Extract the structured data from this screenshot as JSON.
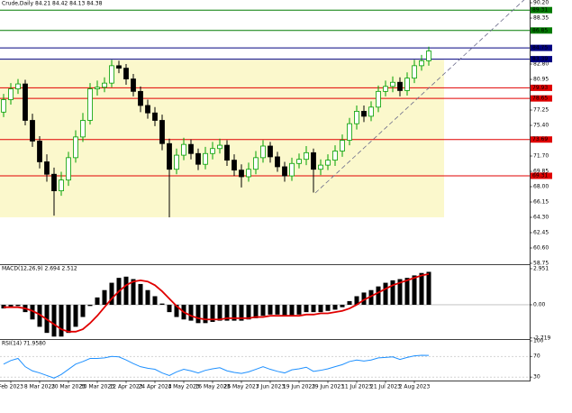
{
  "chart_data": [
    {
      "type": "candlestick",
      "title": "Crude,Daily 84.21 84.42 84.13 84.38",
      "categories": [
        null,
        "Feb 2023",
        null,
        null,
        null,
        "8 Mar 2023",
        null,
        null,
        null,
        "20 Mar 2023",
        null,
        null,
        null,
        "30 Mar 2023",
        null,
        null,
        null,
        "12 Apr 2023",
        null,
        null,
        null,
        "24 Apr 2023",
        null,
        null,
        null,
        "4 May 2023",
        null,
        null,
        null,
        "16 May 2023",
        null,
        null,
        null,
        "26 May 2023",
        null,
        null,
        null,
        "7 Jun 2023",
        null,
        null,
        null,
        "19 Jun 2023",
        null,
        null,
        null,
        "29 Jun 2023",
        null,
        null,
        null,
        "11 Jul 2023",
        null,
        null,
        null,
        "21 Jul 2023",
        null,
        null,
        null,
        "2 Aug 2023",
        null,
        null
      ],
      "open": [
        77.0,
        78.5,
        79.8,
        80.4,
        76.0,
        73.5,
        71.0,
        69.5,
        67.5,
        68.8,
        71.5,
        74.0,
        76.0,
        79.8,
        80.0,
        80.5,
        82.6,
        82.3,
        81.0,
        79.5,
        77.8,
        76.9,
        76.0,
        73.2,
        70.1,
        71.8,
        73.1,
        72.0,
        70.7,
        72.0,
        72.6,
        73.0,
        71.2,
        70.0,
        69.2,
        70.1,
        71.5,
        72.9,
        71.6,
        70.4,
        69.3,
        70.8,
        71.3,
        72.1,
        70.1,
        70.6,
        71.2,
        72.3,
        73.6,
        75.6,
        77.1,
        76.5,
        77.6,
        79.5,
        80.1,
        80.6,
        79.6,
        81.1,
        82.6,
        83.2
      ],
      "high": [
        79.2,
        80.5,
        81.0,
        80.9,
        76.8,
        74.1,
        71.9,
        70.3,
        69.8,
        72.2,
        74.8,
        76.9,
        80.5,
        80.8,
        81.2,
        83.3,
        83.2,
        82.8,
        81.6,
        80.1,
        78.5,
        77.6,
        76.7,
        73.8,
        72.6,
        73.9,
        73.7,
        72.6,
        72.8,
        73.4,
        73.8,
        73.6,
        71.9,
        70.7,
        70.9,
        72.3,
        73.6,
        73.4,
        72.2,
        71.0,
        71.5,
        72.0,
        72.9,
        72.6,
        71.3,
        71.9,
        73.0,
        74.3,
        76.3,
        77.8,
        77.8,
        78.3,
        80.2,
        80.8,
        81.3,
        81.2,
        81.8,
        83.3,
        83.9,
        84.9
      ],
      "low": [
        76.4,
        77.9,
        79.2,
        75.4,
        72.8,
        70.2,
        68.6,
        64.5,
        66.9,
        68.1,
        70.9,
        73.4,
        75.5,
        79.0,
        79.4,
        80.0,
        81.7,
        80.3,
        78.9,
        77.0,
        76.2,
        75.3,
        72.4,
        64.3,
        69.5,
        71.2,
        71.3,
        70.0,
        70.1,
        71.3,
        72.0,
        70.5,
        69.3,
        67.9,
        68.6,
        69.5,
        70.9,
        70.9,
        69.8,
        68.6,
        68.7,
        70.2,
        70.6,
        67.3,
        69.4,
        70.0,
        70.5,
        71.6,
        73.0,
        74.9,
        75.8,
        75.9,
        77.0,
        78.9,
        79.4,
        78.9,
        79.0,
        80.5,
        82.0,
        82.6
      ],
      "close": [
        78.5,
        79.8,
        80.4,
        76.0,
        73.5,
        71.0,
        69.5,
        67.5,
        68.8,
        71.5,
        74.0,
        76.0,
        79.8,
        80.0,
        80.5,
        82.6,
        82.3,
        81.0,
        79.5,
        77.8,
        76.9,
        76.0,
        73.2,
        70.1,
        71.8,
        73.1,
        72.0,
        70.7,
        72.0,
        72.6,
        73.0,
        71.2,
        70.0,
        69.2,
        70.1,
        71.5,
        72.9,
        71.6,
        70.4,
        69.3,
        70.8,
        71.3,
        72.1,
        70.1,
        70.6,
        71.2,
        72.3,
        73.6,
        75.6,
        77.1,
        76.5,
        77.6,
        79.5,
        80.1,
        80.6,
        79.6,
        81.1,
        82.6,
        83.2,
        84.38
      ],
      "colors": {
        "up": "#00a000",
        "down": "#000000"
      },
      "zone": {
        "values": [
          83.3,
          64.3
        ],
        "color": "#fbf8cc"
      },
      "levels": [
        {
          "value": 89.31,
          "color": "#007a00"
        },
        {
          "value": 86.85,
          "color": "#007a00"
        },
        {
          "value": 84.75,
          "color": "#000080"
        },
        {
          "value": 83.39,
          "color": "#000080"
        },
        {
          "value": 79.93,
          "color": "#e00000"
        },
        {
          "value": 78.65,
          "color": "#e00000"
        },
        {
          "value": 73.69,
          "color": "#e00000"
        },
        {
          "value": 69.31,
          "color": "#e00000"
        }
      ],
      "ylim": [
        58.75,
        90.53
      ],
      "yticks": [
        {
          "value": 90.2,
          "label": "90.20"
        },
        {
          "value": 88.35,
          "label": "88.35"
        },
        {
          "value": 82.8,
          "label": "82.80"
        },
        {
          "value": 80.95,
          "label": "80.95"
        },
        {
          "value": 77.25,
          "label": "77.25"
        },
        {
          "value": 75.4,
          "label": "75.40"
        },
        {
          "value": 71.7,
          "label": "71.70"
        },
        {
          "value": 69.85,
          "label": "69.85"
        },
        {
          "value": 68,
          "label": "68.00"
        },
        {
          "value": 66.15,
          "label": "66.15"
        },
        {
          "value": 64.3,
          "label": "64.30"
        },
        {
          "value": 62.45,
          "label": "62.45"
        },
        {
          "value": 60.6,
          "label": "60.60"
        },
        {
          "value": 58.75,
          "label": "58.75"
        }
      ]
    },
    {
      "type": "macd",
      "title": "MACD(12,26,9) 2.694 2.512",
      "values": [
        -0.3,
        -0.2,
        -0.1,
        -0.6,
        -1.2,
        -1.8,
        -2.3,
        -2.6,
        -2.6,
        -2.3,
        -1.8,
        -1.0,
        -0.1,
        0.6,
        1.2,
        1.8,
        2.2,
        2.3,
        2.1,
        1.7,
        1.2,
        0.7,
        0.1,
        -0.6,
        -1.0,
        -1.2,
        -1.3,
        -1.5,
        -1.5,
        -1.4,
        -1.3,
        -1.3,
        -1.3,
        -1.3,
        -1.2,
        -1.1,
        -0.9,
        -0.8,
        -0.8,
        -0.9,
        -0.9,
        -0.8,
        -0.6,
        -0.6,
        -0.6,
        -0.5,
        -0.4,
        -0.2,
        0.3,
        0.7,
        1.0,
        1.2,
        1.5,
        1.8,
        2.0,
        2.1,
        2.2,
        2.4,
        2.6,
        2.694
      ],
      "signal": [
        -0.2,
        -0.2,
        -0.2,
        -0.3,
        -0.5,
        -0.8,
        -1.2,
        -1.6,
        -2.0,
        -2.2,
        -2.2,
        -2.0,
        -1.5,
        -0.9,
        -0.2,
        0.5,
        1.1,
        1.6,
        1.9,
        2.0,
        1.9,
        1.6,
        1.1,
        0.5,
        -0.1,
        -0.6,
        -0.9,
        -1.1,
        -1.2,
        -1.2,
        -1.2,
        -1.1,
        -1.1,
        -1.1,
        -1.1,
        -1.0,
        -1.0,
        -0.9,
        -0.9,
        -0.9,
        -0.9,
        -0.9,
        -0.8,
        -0.8,
        -0.7,
        -0.7,
        -0.6,
        -0.5,
        -0.3,
        0.0,
        0.4,
        0.7,
        1.0,
        1.3,
        1.6,
        1.8,
        2.0,
        2.2,
        2.4,
        2.512
      ],
      "color": "#000000",
      "signal_color": "#e00000",
      "ylim": [
        -2.73,
        3.17
      ],
      "yticks": [
        2.951,
        {
          "value": 0,
          "label": "0.00"
        },
        -2.719
      ]
    },
    {
      "type": "line",
      "title": "RSI(14) 71.9580",
      "values": [
        55,
        62,
        66,
        50,
        42,
        38,
        33,
        28,
        35,
        45,
        55,
        60,
        66,
        66,
        67,
        70,
        69,
        63,
        56,
        50,
        47,
        45,
        38,
        33,
        40,
        45,
        42,
        38,
        43,
        46,
        48,
        42,
        39,
        37,
        40,
        45,
        50,
        45,
        41,
        38,
        44,
        46,
        49,
        41,
        43,
        46,
        50,
        54,
        60,
        63,
        61,
        63,
        67,
        68,
        69,
        64,
        68,
        71,
        72,
        71.958
      ],
      "color": "#1e90ff",
      "ylim": [
        25,
        100
      ],
      "yticks": [
        100,
        70,
        30
      ]
    }
  ]
}
